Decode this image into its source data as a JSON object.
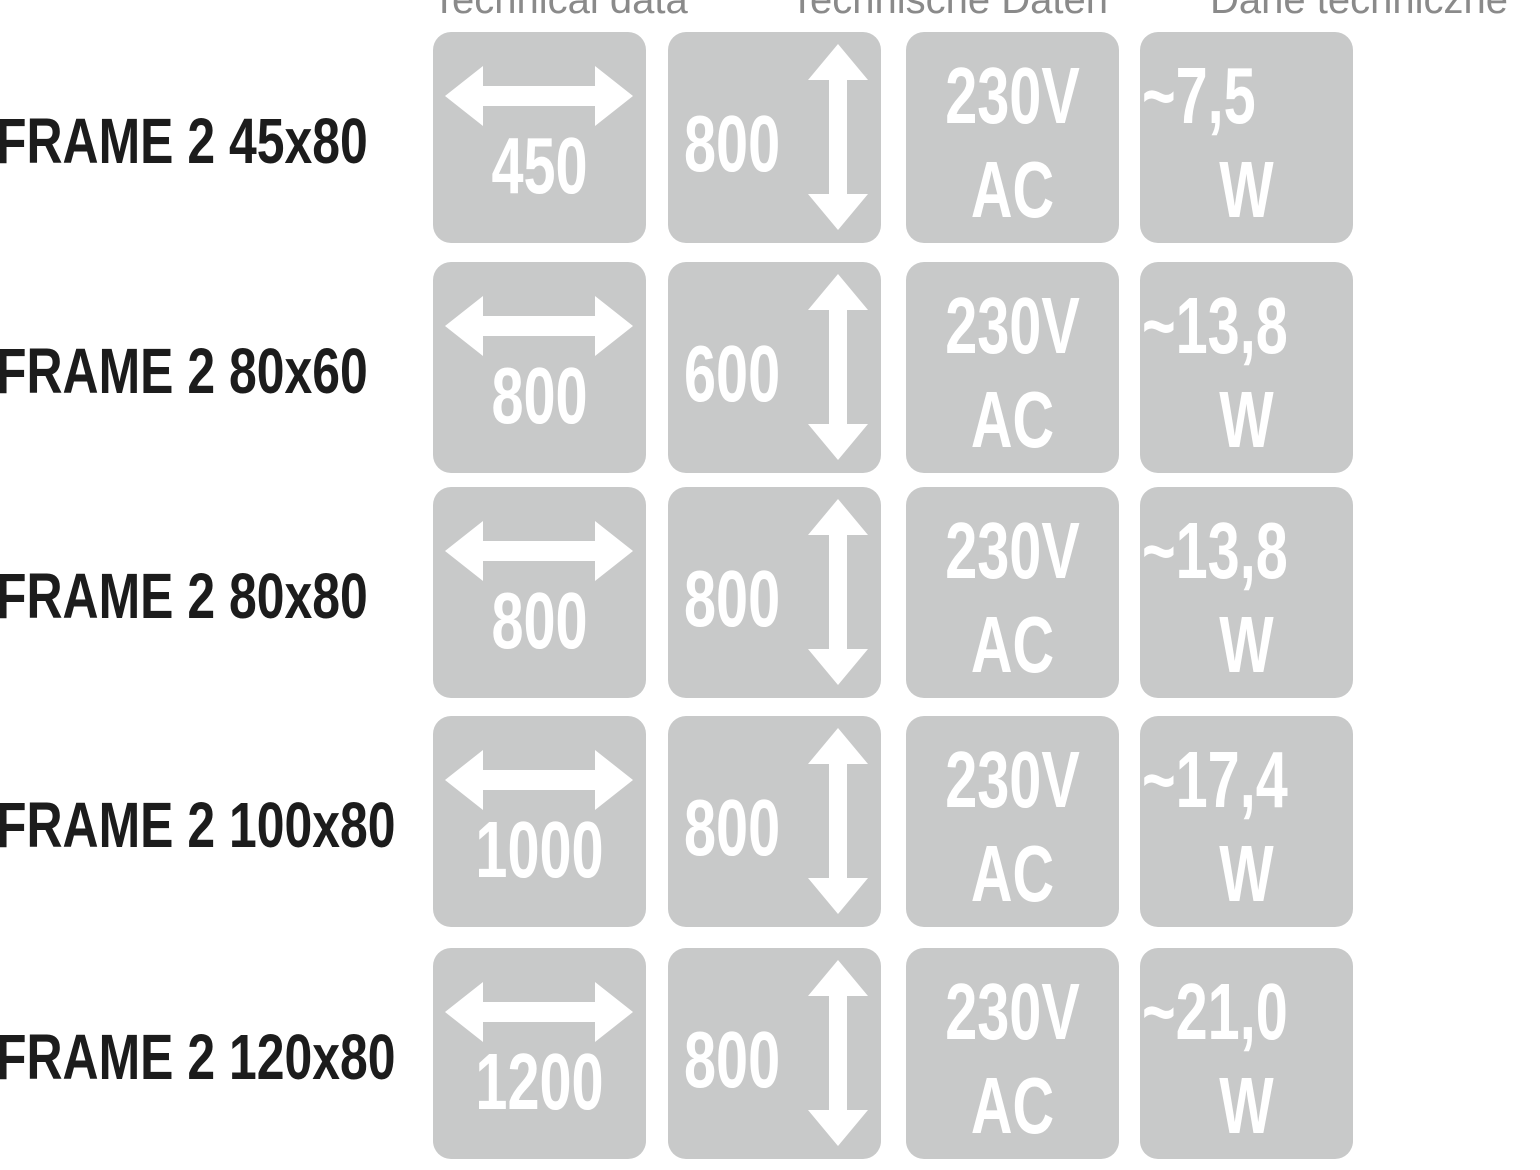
{
  "header": [
    "Technical data",
    "Technische Daten",
    "Dane techniczne"
  ],
  "tile_color": "#c8c9c9",
  "rows": [
    {
      "label": "FRAME 2 45x80",
      "width": "450",
      "height": "800",
      "voltage": "230V",
      "current": "AC",
      "power": "~7,5",
      "unit": "W"
    },
    {
      "label": "FRAME 2 80x60",
      "width": "800",
      "height": "600",
      "voltage": "230V",
      "current": "AC",
      "power": "~13,8",
      "unit": "W"
    },
    {
      "label": "FRAME 2 80x80",
      "width": "800",
      "height": "800",
      "voltage": "230V",
      "current": "AC",
      "power": "~13,8",
      "unit": "W"
    },
    {
      "label": "FRAME 2 100x80",
      "width": "1000",
      "height": "800",
      "voltage": "230V",
      "current": "AC",
      "power": "~17,4",
      "unit": "W"
    },
    {
      "label": "FRAME 2 120x80",
      "width": "1200",
      "height": "800",
      "voltage": "230V",
      "current": "AC",
      "power": "~21,0",
      "unit": "W"
    }
  ]
}
